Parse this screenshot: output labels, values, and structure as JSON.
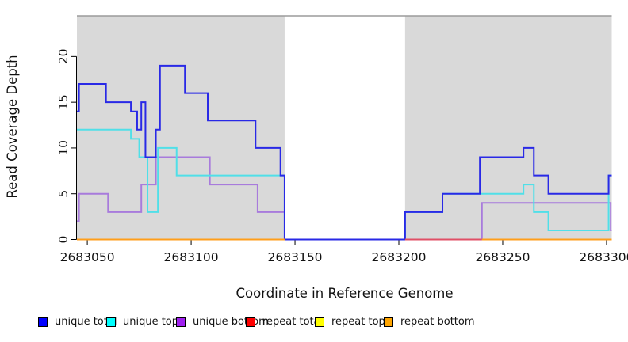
{
  "chart_data": {
    "type": "line",
    "subtype": "step",
    "title": "",
    "xlabel": "Coordinate in Reference Genome",
    "ylabel": "Read Coverage Depth",
    "x_ticks": [
      2683050,
      2683100,
      2683150,
      2683200,
      2683250,
      2683300
    ],
    "y_ticks": [
      0,
      5,
      10,
      15,
      20
    ],
    "xlim": [
      2683045,
      2683302.5
    ],
    "ylim": [
      0,
      24.4
    ],
    "grid": false,
    "plot_background_color": "#d9d9d9",
    "background_blocks": [
      [
        2683045,
        2683145
      ],
      [
        2683203,
        2683302.5
      ]
    ],
    "gap_region": [
      2683145,
      2683203
    ],
    "series": [
      {
        "name": "unique total",
        "line_color": "#2929e6",
        "points": [
          [
            2683045,
            14
          ],
          [
            2683046,
            17
          ],
          [
            2683059,
            15
          ],
          [
            2683071,
            14
          ],
          [
            2683074,
            12
          ],
          [
            2683076,
            15
          ],
          [
            2683078,
            9
          ],
          [
            2683083,
            12
          ],
          [
            2683085,
            19
          ],
          [
            2683097,
            16
          ],
          [
            2683108,
            13
          ],
          [
            2683131,
            10
          ],
          [
            2683143,
            7
          ],
          [
            2683145,
            0
          ],
          [
            2683203,
            3
          ],
          [
            2683221,
            5
          ],
          [
            2683239,
            9
          ],
          [
            2683260,
            10
          ],
          [
            2683265,
            7
          ],
          [
            2683272,
            5
          ],
          [
            2683301,
            7
          ]
        ],
        "end": 2683302.5
      },
      {
        "name": "unique top",
        "line_color": "#50dfe8",
        "points": [
          [
            2683045,
            12
          ],
          [
            2683071,
            11
          ],
          [
            2683075,
            9
          ],
          [
            2683079,
            3
          ],
          [
            2683084,
            10
          ],
          [
            2683093,
            7
          ],
          [
            2683145,
            0
          ],
          [
            2683203,
            3
          ],
          [
            2683221,
            5
          ],
          [
            2683260,
            6
          ],
          [
            2683265,
            3
          ],
          [
            2683272,
            1
          ],
          [
            2683301,
            7
          ]
        ],
        "end": 2683302.5
      },
      {
        "name": "unique bottom",
        "line_color": "#a87bdc",
        "points": [
          [
            2683045,
            2
          ],
          [
            2683046,
            5
          ],
          [
            2683060,
            3
          ],
          [
            2683076,
            6
          ],
          [
            2683083,
            9
          ],
          [
            2683109,
            6
          ],
          [
            2683132,
            3
          ],
          [
            2683145,
            0
          ],
          [
            2683240,
            4
          ],
          [
            2683302,
            1
          ]
        ],
        "end": 2683302.5
      },
      {
        "name": "repeat total",
        "line_color": "#e04f66",
        "segments": [
          [
            2683203,
            2683240,
            0
          ]
        ]
      },
      {
        "name": "repeat top",
        "line_color": "#ffff00",
        "segments": []
      },
      {
        "name": "repeat bottom",
        "line_color": "#ff9e1b",
        "segments": [
          [
            2683045,
            2683145,
            0
          ],
          [
            2683240,
            2683302.5,
            0
          ]
        ]
      }
    ],
    "legend": [
      {
        "label": "unique total",
        "color": "#0000ff"
      },
      {
        "label": "unique top",
        "color": "#00ffff"
      },
      {
        "label": "unique bottom",
        "color": "#a020f0"
      },
      {
        "label": "repeat total",
        "color": "#ff0000"
      },
      {
        "label": "repeat top",
        "color": "#ffff00"
      },
      {
        "label": "repeat bottom",
        "color": "#ffa500"
      }
    ],
    "legend_position": "bottom"
  }
}
